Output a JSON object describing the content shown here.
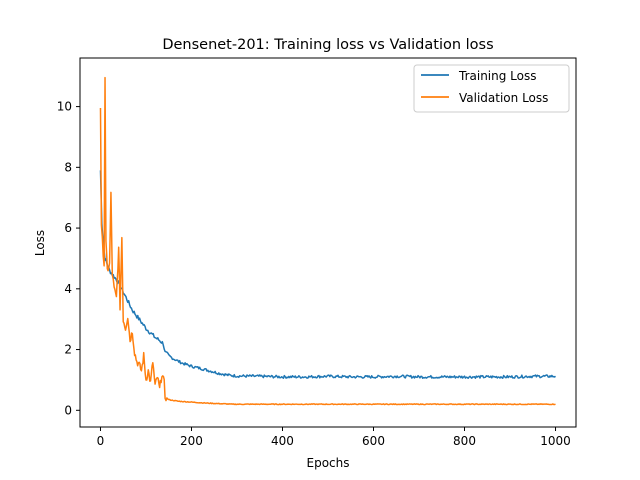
{
  "chart_data": {
    "type": "line",
    "title": "Densenet-201: Training loss vs Validation loss",
    "xlabel": "Epochs",
    "ylabel": "Loss",
    "xlim": [
      -45,
      1045
    ],
    "ylim": [
      -0.55,
      11.6
    ],
    "xticks": [
      0,
      200,
      400,
      600,
      800,
      1000
    ],
    "yticks": [
      0,
      2,
      4,
      6,
      8,
      10
    ],
    "grid": false,
    "legend_position": "top-right",
    "series": [
      {
        "name": "Training Loss",
        "color": "#1f77b4",
        "points": [
          [
            0,
            7.9
          ],
          [
            3,
            6.2
          ],
          [
            6,
            5.5
          ],
          [
            10,
            5.0
          ],
          [
            15,
            4.8
          ],
          [
            20,
            4.6
          ],
          [
            30,
            4.4
          ],
          [
            40,
            4.2
          ],
          [
            50,
            3.9
          ],
          [
            60,
            3.6
          ],
          [
            70,
            3.3
          ],
          [
            80,
            3.1
          ],
          [
            90,
            2.9
          ],
          [
            100,
            2.7
          ],
          [
            110,
            2.55
          ],
          [
            120,
            2.4
          ],
          [
            130,
            2.3
          ],
          [
            138,
            2.2
          ],
          [
            142,
            1.9
          ],
          [
            150,
            1.8
          ],
          [
            160,
            1.7
          ],
          [
            180,
            1.55
          ],
          [
            200,
            1.45
          ],
          [
            220,
            1.38
          ],
          [
            240,
            1.3
          ],
          [
            260,
            1.22
          ],
          [
            280,
            1.16
          ],
          [
            300,
            1.13
          ],
          [
            350,
            1.12
          ],
          [
            400,
            1.1
          ],
          [
            450,
            1.1
          ],
          [
            500,
            1.12
          ],
          [
            550,
            1.1
          ],
          [
            600,
            1.1
          ],
          [
            650,
            1.12
          ],
          [
            700,
            1.1
          ],
          [
            750,
            1.1
          ],
          [
            800,
            1.1
          ],
          [
            850,
            1.1
          ],
          [
            900,
            1.1
          ],
          [
            950,
            1.12
          ],
          [
            1000,
            1.12
          ]
        ]
      },
      {
        "name": "Validation Loss",
        "color": "#ff7f0e",
        "points": [
          [
            0,
            10.0
          ],
          [
            2,
            6.0
          ],
          [
            4,
            5.6
          ],
          [
            6,
            5.2
          ],
          [
            8,
            4.8
          ],
          [
            10,
            11.0
          ],
          [
            12,
            5.5
          ],
          [
            15,
            4.6
          ],
          [
            20,
            4.8
          ],
          [
            23,
            7.1
          ],
          [
            26,
            4.5
          ],
          [
            30,
            4.0
          ],
          [
            35,
            3.7
          ],
          [
            40,
            5.3
          ],
          [
            43,
            3.4
          ],
          [
            47,
            5.7
          ],
          [
            50,
            3.0
          ],
          [
            55,
            2.7
          ],
          [
            60,
            3.1
          ],
          [
            65,
            2.3
          ],
          [
            70,
            2.6
          ],
          [
            75,
            1.9
          ],
          [
            80,
            1.6
          ],
          [
            85,
            1.5
          ],
          [
            90,
            1.3
          ],
          [
            95,
            1.8
          ],
          [
            100,
            1.0
          ],
          [
            105,
            1.3
          ],
          [
            110,
            0.9
          ],
          [
            115,
            1.6
          ],
          [
            120,
            0.8
          ],
          [
            125,
            1.1
          ],
          [
            130,
            0.7
          ],
          [
            135,
            1.2
          ],
          [
            140,
            0.9
          ],
          [
            142,
            0.45
          ],
          [
            150,
            0.35
          ],
          [
            170,
            0.3
          ],
          [
            200,
            0.27
          ],
          [
            230,
            0.24
          ],
          [
            260,
            0.22
          ],
          [
            290,
            0.2
          ],
          [
            350,
            0.2
          ],
          [
            400,
            0.2
          ],
          [
            500,
            0.2
          ],
          [
            600,
            0.2
          ],
          [
            700,
            0.2
          ],
          [
            800,
            0.2
          ],
          [
            900,
            0.2
          ],
          [
            1000,
            0.2
          ]
        ]
      }
    ]
  }
}
